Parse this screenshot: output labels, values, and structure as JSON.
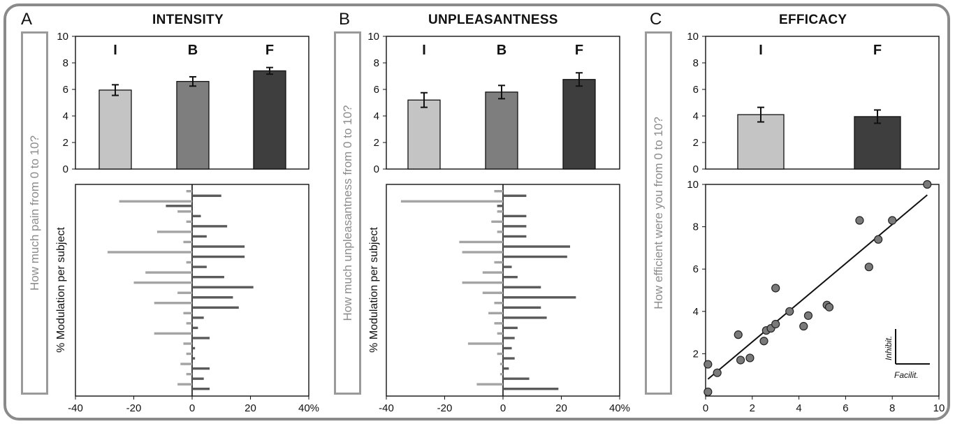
{
  "panels": [
    {
      "letter": "A",
      "title": "INTENSITY",
      "question": "How much pain from 0 to 10?",
      "modulation_label": "% Modulation  per subject"
    },
    {
      "letter": "B",
      "title": "UNPLEASANTNESS",
      "question": "How much unpleasantness from 0 to 10?",
      "modulation_label": "% Modulation  per subject"
    },
    {
      "letter": "C",
      "title": "EFFICACY",
      "question": "How efficient were you from 0 to 10?",
      "arrow_labels": [
        "Inhibit.",
        "Facilit."
      ]
    }
  ],
  "colors": {
    "I": "#c4c4c4",
    "B": "#7e7e7e",
    "F": "#3e3e3e",
    "inhibit_bar": "#a4a4a4",
    "facilit_bar": "#5a5a5a",
    "dot": "#7a7a7a",
    "frame": "#8a8a8a"
  },
  "chart_data": [
    {
      "type": "bar",
      "panel": "A",
      "title": "INTENSITY",
      "categories": [
        "I",
        "B",
        "F"
      ],
      "values": [
        5.95,
        6.6,
        7.4
      ],
      "errors": [
        0.4,
        0.35,
        0.25
      ],
      "ylim": [
        0,
        10
      ],
      "yticks": [
        "0",
        "2",
        "4",
        "6",
        "8",
        "10"
      ]
    },
    {
      "type": "bar",
      "panel": "A",
      "orientation": "horizontal",
      "series": [
        {
          "values": [
            -2,
            -25,
            -5,
            -2,
            -12,
            -3,
            -29,
            -2,
            -16,
            -20,
            -5,
            -13,
            -3,
            -2,
            -13,
            -3,
            -2,
            -4,
            -2,
            -5
          ]
        },
        {
          "values": [
            10,
            -9,
            3,
            12,
            5,
            18,
            18,
            5,
            11,
            21,
            14,
            16,
            4,
            2,
            6,
            1,
            1,
            6,
            4,
            6
          ]
        }
      ],
      "xlim": [
        -40,
        40
      ],
      "xticks": [
        "-40",
        "-20",
        "0",
        "20",
        "40%"
      ]
    },
    {
      "type": "bar",
      "panel": "B",
      "title": "UNPLEASANTNESS",
      "categories": [
        "I",
        "B",
        "F"
      ],
      "values": [
        5.2,
        5.8,
        6.75
      ],
      "errors": [
        0.55,
        0.5,
        0.5
      ],
      "ylim": [
        0,
        10
      ],
      "yticks": [
        "0",
        "2",
        "4",
        "6",
        "8",
        "10"
      ]
    },
    {
      "type": "bar",
      "panel": "B",
      "orientation": "horizontal",
      "series": [
        {
          "values": [
            -3,
            -35,
            -2,
            -4,
            -2,
            -15,
            -14,
            -3,
            -7,
            -14,
            -7,
            -3,
            -5,
            -3,
            -2,
            -12,
            -2,
            -1,
            -1,
            -9
          ]
        },
        {
          "values": [
            8,
            -2,
            8,
            8,
            8,
            23,
            22,
            3,
            5,
            13,
            25,
            13,
            15,
            5,
            4,
            3,
            4,
            2,
            9,
            19
          ]
        }
      ],
      "xlim": [
        -40,
        40
      ],
      "xticks": [
        "-40",
        "-20",
        "0",
        "20",
        "40%"
      ]
    },
    {
      "type": "bar",
      "panel": "C",
      "title": "EFFICACY",
      "categories": [
        "I",
        "F"
      ],
      "values": [
        4.1,
        3.95
      ],
      "errors": [
        0.55,
        0.5
      ],
      "ylim": [
        0,
        10
      ],
      "yticks": [
        "0",
        "2",
        "4",
        "6",
        "8",
        "10"
      ]
    },
    {
      "type": "scatter",
      "panel": "C",
      "x": [
        0.1,
        0.1,
        0.5,
        1.4,
        1.5,
        1.9,
        2.5,
        2.6,
        2.8,
        3.0,
        3.0,
        3.6,
        4.2,
        4.4,
        5.2,
        5.3,
        6.6,
        7.0,
        7.4,
        8.0,
        9.5
      ],
      "y": [
        0.2,
        1.5,
        1.1,
        2.9,
        1.7,
        1.8,
        2.6,
        3.1,
        3.2,
        3.4,
        5.1,
        4.0,
        3.3,
        3.8,
        4.3,
        4.2,
        8.3,
        6.1,
        7.4,
        8.3,
        10.0
      ],
      "trendline": {
        "x": [
          0.1,
          9.5
        ],
        "y": [
          0.8,
          9.5
        ]
      },
      "xlim": [
        0,
        10
      ],
      "ylim": [
        0,
        10
      ],
      "xticks": [
        "0",
        "2",
        "4",
        "6",
        "8",
        "10"
      ],
      "yticks": [
        "2",
        "4",
        "6",
        "8",
        "10"
      ]
    }
  ]
}
